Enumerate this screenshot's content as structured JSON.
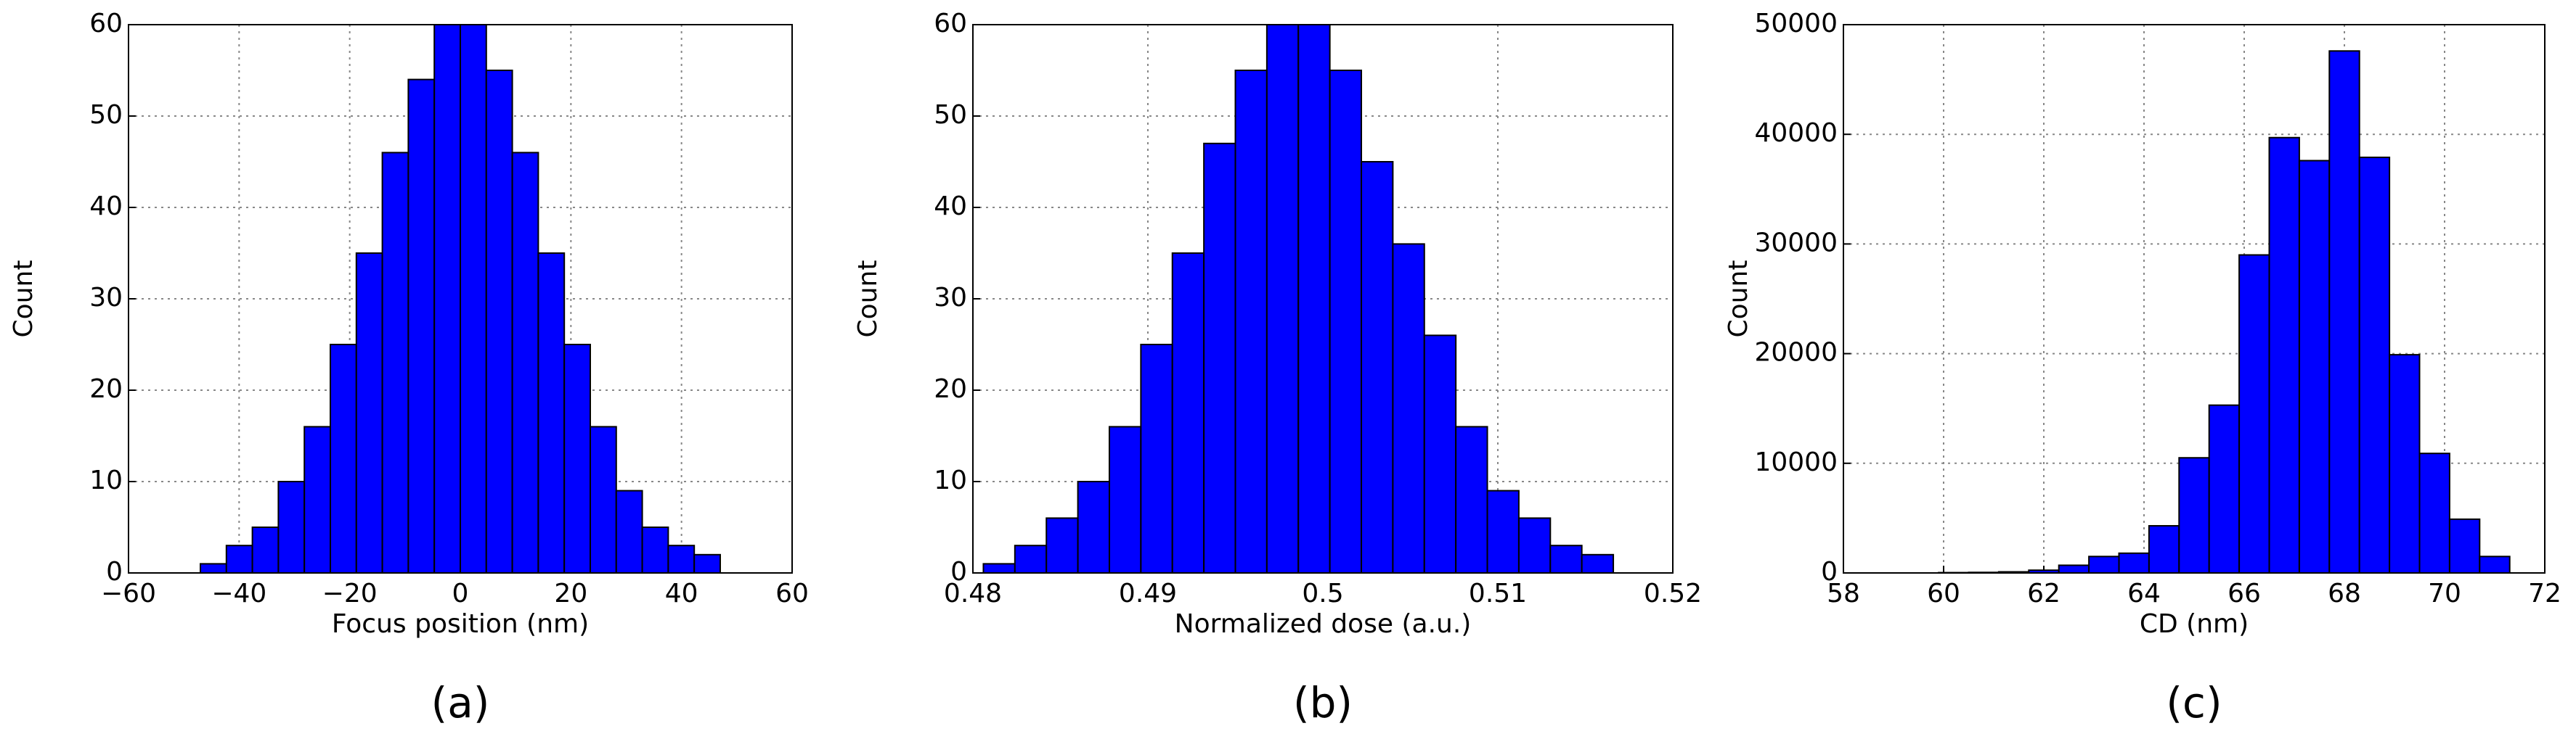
{
  "chart_data": [
    {
      "type": "histogram",
      "label": "(a)",
      "xlabel": "Focus position (nm)",
      "ylabel": "Count",
      "color": "#0000ff",
      "grid": true,
      "bins": [
        -47,
        -42.3,
        -37.6,
        -32.9,
        -28.2,
        -23.5,
        -18.8,
        -14.1,
        -9.4,
        -4.7,
        0,
        4.7,
        9.4,
        14.1,
        18.8,
        23.5,
        28.2,
        32.9,
        37.6,
        42.3,
        47
      ],
      "values": [
        1,
        3,
        5,
        10,
        16,
        25,
        35,
        46,
        54,
        62,
        62,
        55,
        46,
        35,
        25,
        16,
        9,
        5,
        3,
        2
      ],
      "xlim": [
        -60,
        60
      ],
      "xticks": [
        {
          "value": -60,
          "label": "−60"
        },
        {
          "value": -40,
          "label": "−40"
        },
        {
          "value": -20,
          "label": "−20"
        },
        0,
        20,
        40,
        60
      ],
      "ylim": [
        0,
        60
      ],
      "yticks": [
        0,
        10,
        20,
        30,
        40,
        50,
        60
      ]
    },
    {
      "type": "histogram",
      "label": "(b)",
      "xlabel": "Normalized dose (a.u.)",
      "ylabel": "Count",
      "color": "#0000ff",
      "grid": true,
      "bins": [
        0.4806,
        0.4824,
        0.4842,
        0.486,
        0.4878,
        0.4896,
        0.4914,
        0.4932,
        0.495,
        0.4968,
        0.4986,
        0.5004,
        0.5022,
        0.504,
        0.5058,
        0.5076,
        0.5094,
        0.5112,
        0.513,
        0.5148,
        0.5166
      ],
      "values": [
        1,
        3,
        6,
        10,
        16,
        25,
        35,
        47,
        55,
        62,
        62,
        55,
        45,
        36,
        26,
        16,
        9,
        6,
        3,
        2
      ],
      "xlim": [
        0.48,
        0.52
      ],
      "xticks": [
        0.48,
        0.49,
        0.5,
        0.51,
        0.52
      ],
      "ylim": [
        0,
        60
      ],
      "yticks": [
        0,
        10,
        20,
        30,
        40,
        50,
        60
      ]
    },
    {
      "type": "histogram",
      "label": "(c)",
      "xlabel": "CD (nm)",
      "ylabel": "Count",
      "color": "#0000ff",
      "grid": true,
      "bins": [
        59.9,
        60.5,
        61.1,
        61.7,
        62.3,
        62.9,
        63.5,
        64.1,
        64.7,
        65.3,
        65.9,
        66.5,
        67.1,
        67.7,
        68.3,
        68.9,
        69.5,
        70.1,
        70.7,
        71.3
      ],
      "values": [
        30,
        50,
        100,
        250,
        700,
        1500,
        1800,
        4300,
        10500,
        15300,
        29000,
        39700,
        37600,
        47600,
        37900,
        19900,
        10900,
        4900,
        1500
      ],
      "xlim": [
        58,
        72
      ],
      "xticks": [
        58,
        60,
        62,
        64,
        66,
        68,
        70,
        72
      ],
      "ylim": [
        0,
        50000
      ],
      "yticks": [
        0,
        10000,
        20000,
        30000,
        40000,
        50000
      ]
    }
  ]
}
